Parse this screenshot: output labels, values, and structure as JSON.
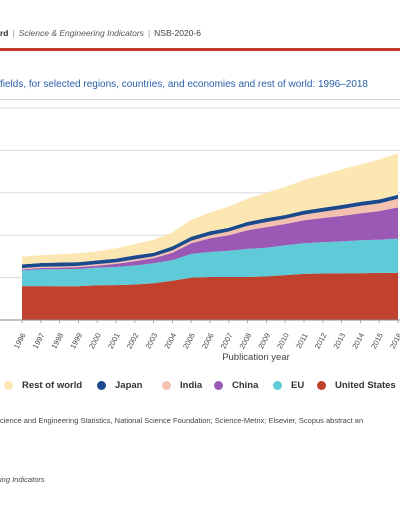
{
  "header": {
    "brand_tail": "rd",
    "publication": "Science & Engineering Indicators",
    "report_id": "NSB-2020-6"
  },
  "title": "fields, for selected regions, countries, and economies and rest of world: 1996–2018",
  "colors": {
    "accent_line": "#c0392b",
    "title": "#2a5fa8"
  },
  "chart_data": {
    "type": "area",
    "stacked": true,
    "xlabel": "Publication year",
    "x": [
      "1996",
      "1997",
      "1998",
      "1999",
      "2000",
      "2001",
      "2002",
      "2003",
      "2004",
      "2005",
      "2006",
      "2007",
      "2008",
      "2009",
      "2010",
      "2011",
      "2012",
      "2013",
      "2014",
      "2015",
      "2016"
    ],
    "ylim": [
      0,
      1700000
    ],
    "grid": true,
    "legend_position": "bottom",
    "series": [
      {
        "name": "United States",
        "color": "#c0412d",
        "values": [
          272000,
          272000,
          270000,
          270000,
          278000,
          280000,
          285000,
          295000,
          315000,
          340000,
          345000,
          345000,
          345000,
          350000,
          360000,
          370000,
          373000,
          375000,
          375000,
          378000,
          378000
        ]
      },
      {
        "name": "EU",
        "color": "#5fcbd8",
        "values": [
          126000,
          135000,
          137000,
          140000,
          142000,
          145000,
          152000,
          160000,
          165000,
          190000,
          200000,
          210000,
          225000,
          230000,
          240000,
          245000,
          250000,
          255000,
          265000,
          265000,
          275000
        ]
      },
      {
        "name": "China",
        "color": "#9b59b6",
        "values": [
          8000,
          10000,
          12000,
          14000,
          16000,
          25000,
          35000,
          40000,
          60000,
          85000,
          110000,
          125000,
          150000,
          165000,
          170000,
          185000,
          195000,
          205000,
          215000,
          230000,
          250000
        ]
      },
      {
        "name": "India",
        "color": "#f4c0b0",
        "values": [
          10000,
          10000,
          10000,
          10000,
          12000,
          12000,
          14000,
          15000,
          18000,
          20000,
          25000,
          30000,
          35000,
          40000,
          42000,
          45000,
          50000,
          55000,
          60000,
          62000,
          70000
        ]
      },
      {
        "name": "Japan",
        "color": "#1a4a8c",
        "values": [
          30000,
          30000,
          32000,
          30000,
          30000,
          30000,
          32000,
          30000,
          32000,
          32000,
          32000,
          30000,
          32000,
          32000,
          30000,
          32000,
          32000,
          32000,
          32000,
          32000,
          32000
        ]
      },
      {
        "name": "Rest of world",
        "color": "#fce7b3",
        "values": [
          62000,
          63000,
          66000,
          70000,
          72000,
          83000,
          90000,
          103000,
          112000,
          138000,
          150000,
          170000,
          185000,
          205000,
          225000,
          245000,
          265000,
          285000,
          300000,
          320000,
          330000
        ]
      }
    ]
  },
  "legend_order": [
    "Rest of world",
    "Japan",
    "India",
    "China",
    "EU",
    "United States"
  ],
  "source": "cience and Engineering Statistics, National Science Foundation; Science-Metrix; Elsevier, Scopus abstract an",
  "footer": "ing Indicators"
}
